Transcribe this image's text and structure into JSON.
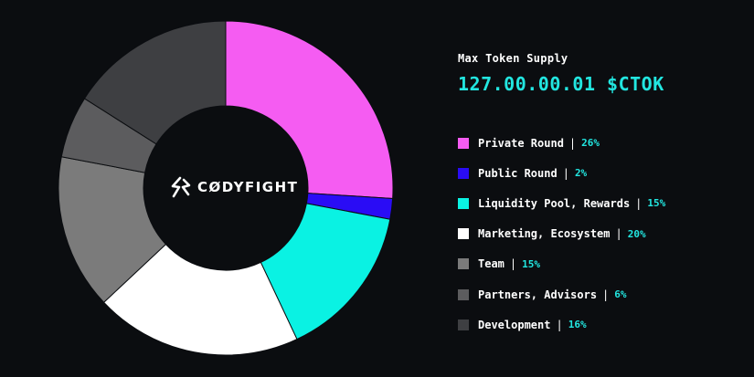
{
  "brand": {
    "name": "CØDYFIGHT",
    "icon": "codyfight-logo-icon"
  },
  "supply": {
    "label": "Max Token Supply",
    "value": "127.00.00.01 $CTOK"
  },
  "legend_separator": "|",
  "chart_data": {
    "type": "pie",
    "donut": true,
    "title": "",
    "categories": [
      "Private Round",
      "Public Round",
      "Liquidity Pool, Rewards",
      "Marketing, Ecosystem",
      "Team",
      "Partners, Advisors",
      "Development"
    ],
    "values": [
      26,
      2,
      15,
      20,
      15,
      6,
      16
    ],
    "value_labels": [
      "26%",
      "2%",
      "15%",
      "20%",
      "15%",
      "6%",
      "16%"
    ],
    "colors": [
      "#f55cf2",
      "#2a0cf5",
      "#0af2e3",
      "#ffffff",
      "#7b7b7b",
      "#5c5c5e",
      "#3e3f42"
    ],
    "unit": "%",
    "legend_position": "right"
  }
}
